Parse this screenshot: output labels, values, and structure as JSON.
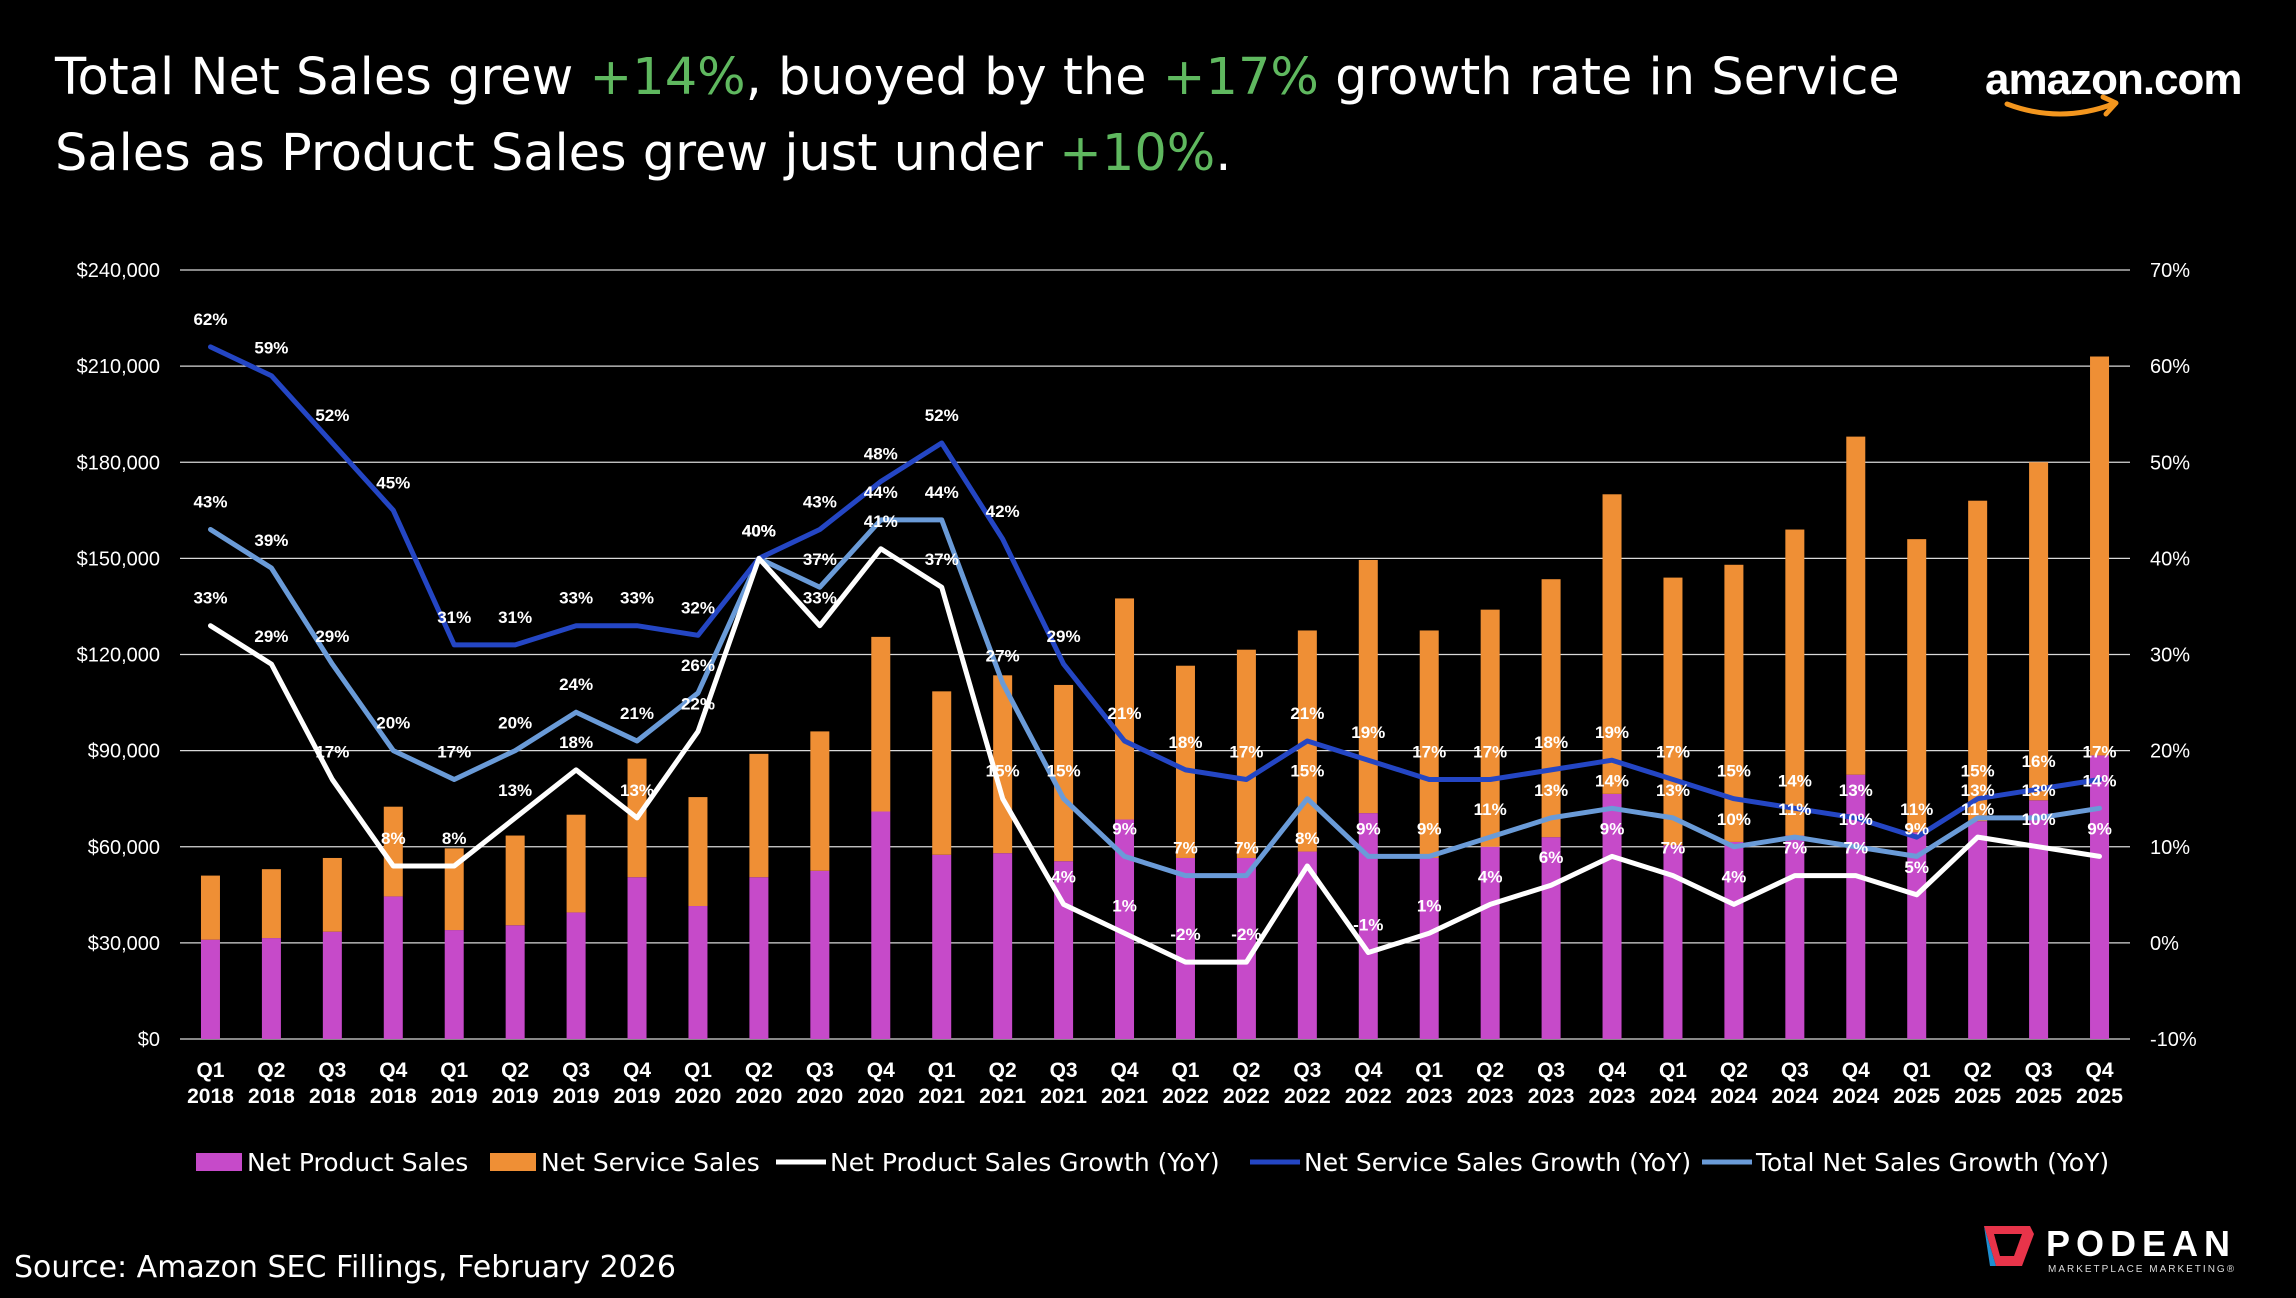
{
  "headline": {
    "part1": "Total Net Sales grew ",
    "hl1": "+14%",
    "part2": ", buoyed by the ",
    "hl2": "+17%",
    "part3": " growth rate in Service Sales as Product Sales grew just under ",
    "hl3": "+10%",
    "part4": "."
  },
  "logo": {
    "text": "amazon.com",
    "icon": "amazon-smile-arrow-icon"
  },
  "brand": {
    "name": "PODEAN",
    "tagline": "MARKETPLACE MARKETING®",
    "icon": "podean-logo-icon"
  },
  "source": "Source: Amazon SEC Fillings, February 2026",
  "colors": {
    "product": "#c64ac9",
    "service": "#ef8f35",
    "product_growth": "#ffffff",
    "service_growth": "#2446c4",
    "total_growth": "#6a9bd8",
    "highlight": "#5fb85f"
  },
  "chart_data": {
    "type": "bar",
    "title": "",
    "xlabel": "",
    "ylabel": "",
    "ylim": [
      0,
      240000
    ],
    "y2lim": [
      -10,
      70
    ],
    "y_ticks": [
      "$0",
      "$30,000",
      "$60,000",
      "$90,000",
      "$120,000",
      "$150,000",
      "$180,000",
      "$210,000",
      "$240,000"
    ],
    "y2_ticks": [
      "-10%",
      "0%",
      "10%",
      "20%",
      "30%",
      "40%",
      "50%",
      "60%",
      "70%"
    ],
    "categories": [
      "Q1 2018",
      "Q2 2018",
      "Q3 2018",
      "Q4 2018",
      "Q1 2019",
      "Q2 2019",
      "Q3 2019",
      "Q4 2019",
      "Q1 2020",
      "Q2 2020",
      "Q3 2020",
      "Q4 2020",
      "Q1 2021",
      "Q2 2021",
      "Q3 2021",
      "Q4 2021",
      "Q1 2022",
      "Q2 2022",
      "Q3 2022",
      "Q4 2022",
      "Q1 2023",
      "Q2 2023",
      "Q3 2023",
      "Q4 2023",
      "Q1 2024",
      "Q2 2024",
      "Q3 2024",
      "Q4 2024",
      "Q1 2025",
      "Q2 2025",
      "Q3 2025",
      "Q4 2025"
    ],
    "legend": [
      "Net Product Sales",
      "Net Service Sales",
      "Net Product Sales Growth (YoY)",
      "Net Service Sales Growth (YoY)",
      "Total Net Sales Growth (YoY)"
    ],
    "legend_position": "bottom",
    "series": [
      {
        "name": "Net Product Sales",
        "type": "bar",
        "axis": "left",
        "values": [
          31000,
          31500,
          33500,
          44500,
          34000,
          35500,
          39500,
          50500,
          41500,
          50500,
          52500,
          71000,
          57500,
          58000,
          55500,
          68500,
          56500,
          56500,
          58500,
          70500,
          56500,
          60000,
          63000,
          76500,
          60500,
          61500,
          63500,
          82500,
          64500,
          68000,
          74500,
          88500
        ]
      },
      {
        "name": "Net Service Sales",
        "type": "bar-stacked",
        "axis": "left",
        "values": [
          20000,
          21500,
          23000,
          28000,
          25500,
          28000,
          30500,
          37000,
          34000,
          38500,
          43500,
          54500,
          51000,
          55500,
          55000,
          69000,
          60000,
          65000,
          69000,
          79000,
          71000,
          74000,
          80500,
          93500,
          83500,
          86500,
          95500,
          105500,
          91500,
          100000,
          105500,
          124500
        ]
      },
      {
        "name": "Net Product Sales Growth (YoY)",
        "type": "line",
        "axis": "right",
        "values": [
          33,
          29,
          17,
          8,
          8,
          13,
          18,
          13,
          22,
          40,
          33,
          41,
          37,
          15,
          4,
          1,
          -2,
          -2,
          8,
          -1,
          1,
          4,
          6,
          9,
          7,
          4,
          7,
          7,
          5,
          11,
          10,
          9
        ],
        "labels": [
          "33%",
          "29%",
          "17%",
          "8%",
          "8%",
          "13%",
          "18%",
          "13%",
          "22%",
          "40%",
          "33%",
          "41%",
          "37%",
          "15%",
          "4%",
          "1%",
          "-2%",
          "-2%",
          "8%",
          "-1%",
          "1%",
          "4%",
          "6%",
          "9%",
          "7%",
          "4%",
          "7%",
          "7%",
          "5%",
          "11%",
          "10%",
          "9%"
        ]
      },
      {
        "name": "Net Service Sales Growth (YoY)",
        "type": "line",
        "axis": "right",
        "values": [
          62,
          59,
          52,
          45,
          31,
          31,
          33,
          33,
          32,
          40,
          43,
          48,
          52,
          42,
          29,
          21,
          18,
          17,
          21,
          19,
          17,
          17,
          18,
          19,
          17,
          15,
          14,
          13,
          11,
          15,
          16,
          17
        ],
        "labels": [
          "62%",
          "59%",
          "52%",
          "45%",
          "31%",
          "31%",
          "33%",
          "33%",
          "32%",
          "40%",
          "43%",
          "48%",
          "52%",
          "42%",
          "29%",
          "21%",
          "18%",
          "17%",
          "21%",
          "19%",
          "17%",
          "17%",
          "18%",
          "19%",
          "17%",
          "15%",
          "14%",
          "13%",
          "11%",
          "15%",
          "16%",
          "17%"
        ]
      },
      {
        "name": "Total Net Sales Growth (YoY)",
        "type": "line",
        "axis": "right",
        "values": [
          43,
          39,
          29,
          20,
          17,
          20,
          24,
          21,
          26,
          40,
          37,
          44,
          44,
          27,
          15,
          9,
          7,
          7,
          15,
          9,
          9,
          11,
          13,
          14,
          13,
          10,
          11,
          10,
          9,
          13,
          13,
          14
        ],
        "labels": [
          "43%",
          "39%",
          "29%",
          "20%",
          "17%",
          "20%",
          "24%",
          "21%",
          "26%",
          "40%",
          "37%",
          "44%",
          "44%",
          "27%",
          "15%",
          "9%",
          "7%",
          "7%",
          "15%",
          "9%",
          "9%",
          "11%",
          "13%",
          "14%",
          "13%",
          "10%",
          "11%",
          "10%",
          "9%",
          "13%",
          "13%",
          "14%"
        ]
      }
    ]
  }
}
